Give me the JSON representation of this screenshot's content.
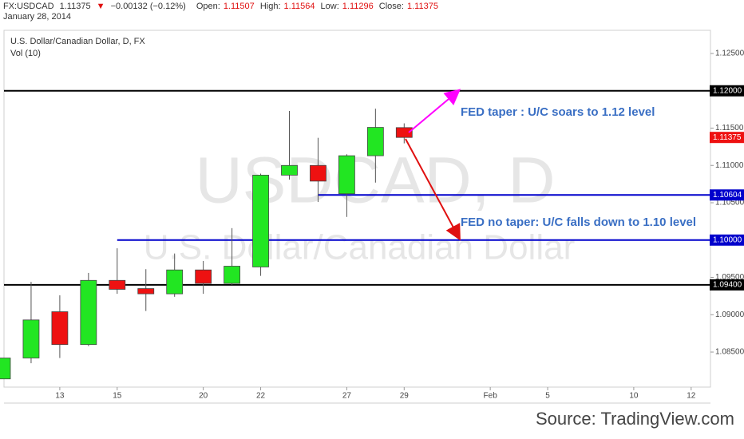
{
  "header": {
    "symbol": "FX:USDCAD",
    "price": "1.11375",
    "arrow": "▼",
    "change": "−0.00132 (−0.12%)",
    "open_label": "Open:",
    "open": "1.11507",
    "high_label": "High:",
    "high": "1.11564",
    "low_label": "Low:",
    "low": "1.11296",
    "close_label": "Close:",
    "close": "1.11375",
    "date": "January 28, 2014"
  },
  "chart_data": {
    "type": "candlestick",
    "chart_label": "U.S. Dollar/Canadian Dollar, D, FX",
    "indicator": "Vol (10)",
    "watermark": "USDCAD, D",
    "watermark_sub": "U.S. Dollar/Canadian Dollar",
    "categories": [
      null,
      null,
      "13",
      null,
      "15",
      null,
      null,
      "20",
      null,
      "22",
      null,
      null,
      "27",
      null,
      "29",
      null,
      null,
      "Feb",
      null,
      "5",
      null,
      null,
      "10",
      null,
      "12"
    ],
    "open": [
      1.0814,
      1.0842,
      1.0904,
      1.086,
      1.0946,
      1.0935,
      1.0928,
      1.096,
      1.0942,
      1.0964,
      1.1087,
      1.11,
      1.1062,
      1.1113,
      1.11507,
      null,
      null,
      null,
      null,
      null,
      null,
      null,
      null,
      null,
      null
    ],
    "high": [
      1.0842,
      1.0944,
      1.0926,
      1.0956,
      1.0989,
      1.0961,
      1.0982,
      1.0972,
      1.1016,
      1.1089,
      1.1173,
      1.1137,
      1.1115,
      1.1176,
      1.11564,
      null,
      null,
      null,
      null,
      null,
      null,
      null,
      null,
      null,
      null
    ],
    "low": [
      1.0814,
      1.0835,
      1.0842,
      1.0858,
      1.0928,
      1.0905,
      1.0924,
      1.0928,
      1.094,
      1.0952,
      1.1081,
      1.1051,
      1.1031,
      1.1077,
      1.11296,
      null,
      null,
      null,
      null,
      null,
      null,
      null,
      null,
      null,
      null
    ],
    "close": [
      1.0842,
      1.0893,
      1.086,
      1.0946,
      1.0934,
      1.0928,
      1.096,
      1.0942,
      1.0965,
      1.1087,
      1.11,
      1.1079,
      1.1113,
      1.1151,
      1.11375,
      null,
      null,
      null,
      null,
      null,
      null,
      null,
      null,
      null,
      null
    ],
    "up_color": "#22e622",
    "down_color": "#ee1111",
    "ylim": [
      1.0803,
      1.1281
    ],
    "yticks": [
      {
        "value": 1.085,
        "label": "1.08500"
      },
      {
        "value": 1.09,
        "label": "1.09000"
      },
      {
        "value": 1.095,
        "label": "1.09500"
      },
      {
        "value": 1.105,
        "label": "1.10500"
      },
      {
        "value": 1.11,
        "label": "1.11000"
      },
      {
        "value": 1.115,
        "label": "1.11500"
      },
      {
        "value": 1.125,
        "label": "1.12500"
      }
    ],
    "levels": [
      {
        "value": 1.12,
        "label": "1.12000",
        "color": "#000000"
      },
      {
        "value": 1.10604,
        "label": "1.10604",
        "color": "#0000cc"
      },
      {
        "value": 1.1,
        "label": "1.10000",
        "color": "#0000cc"
      },
      {
        "value": 1.094,
        "label": "1.09400",
        "color": "#000000"
      }
    ],
    "last_price": {
      "value": 1.11375,
      "label": "1.11375",
      "color": "#ee1111"
    },
    "annotations": [
      "FED taper : U/C soars to 1.12 level",
      "FED no taper: U/C falls down to 1.10 level"
    ],
    "grid": false
  },
  "source": "Source: TradingView.com"
}
